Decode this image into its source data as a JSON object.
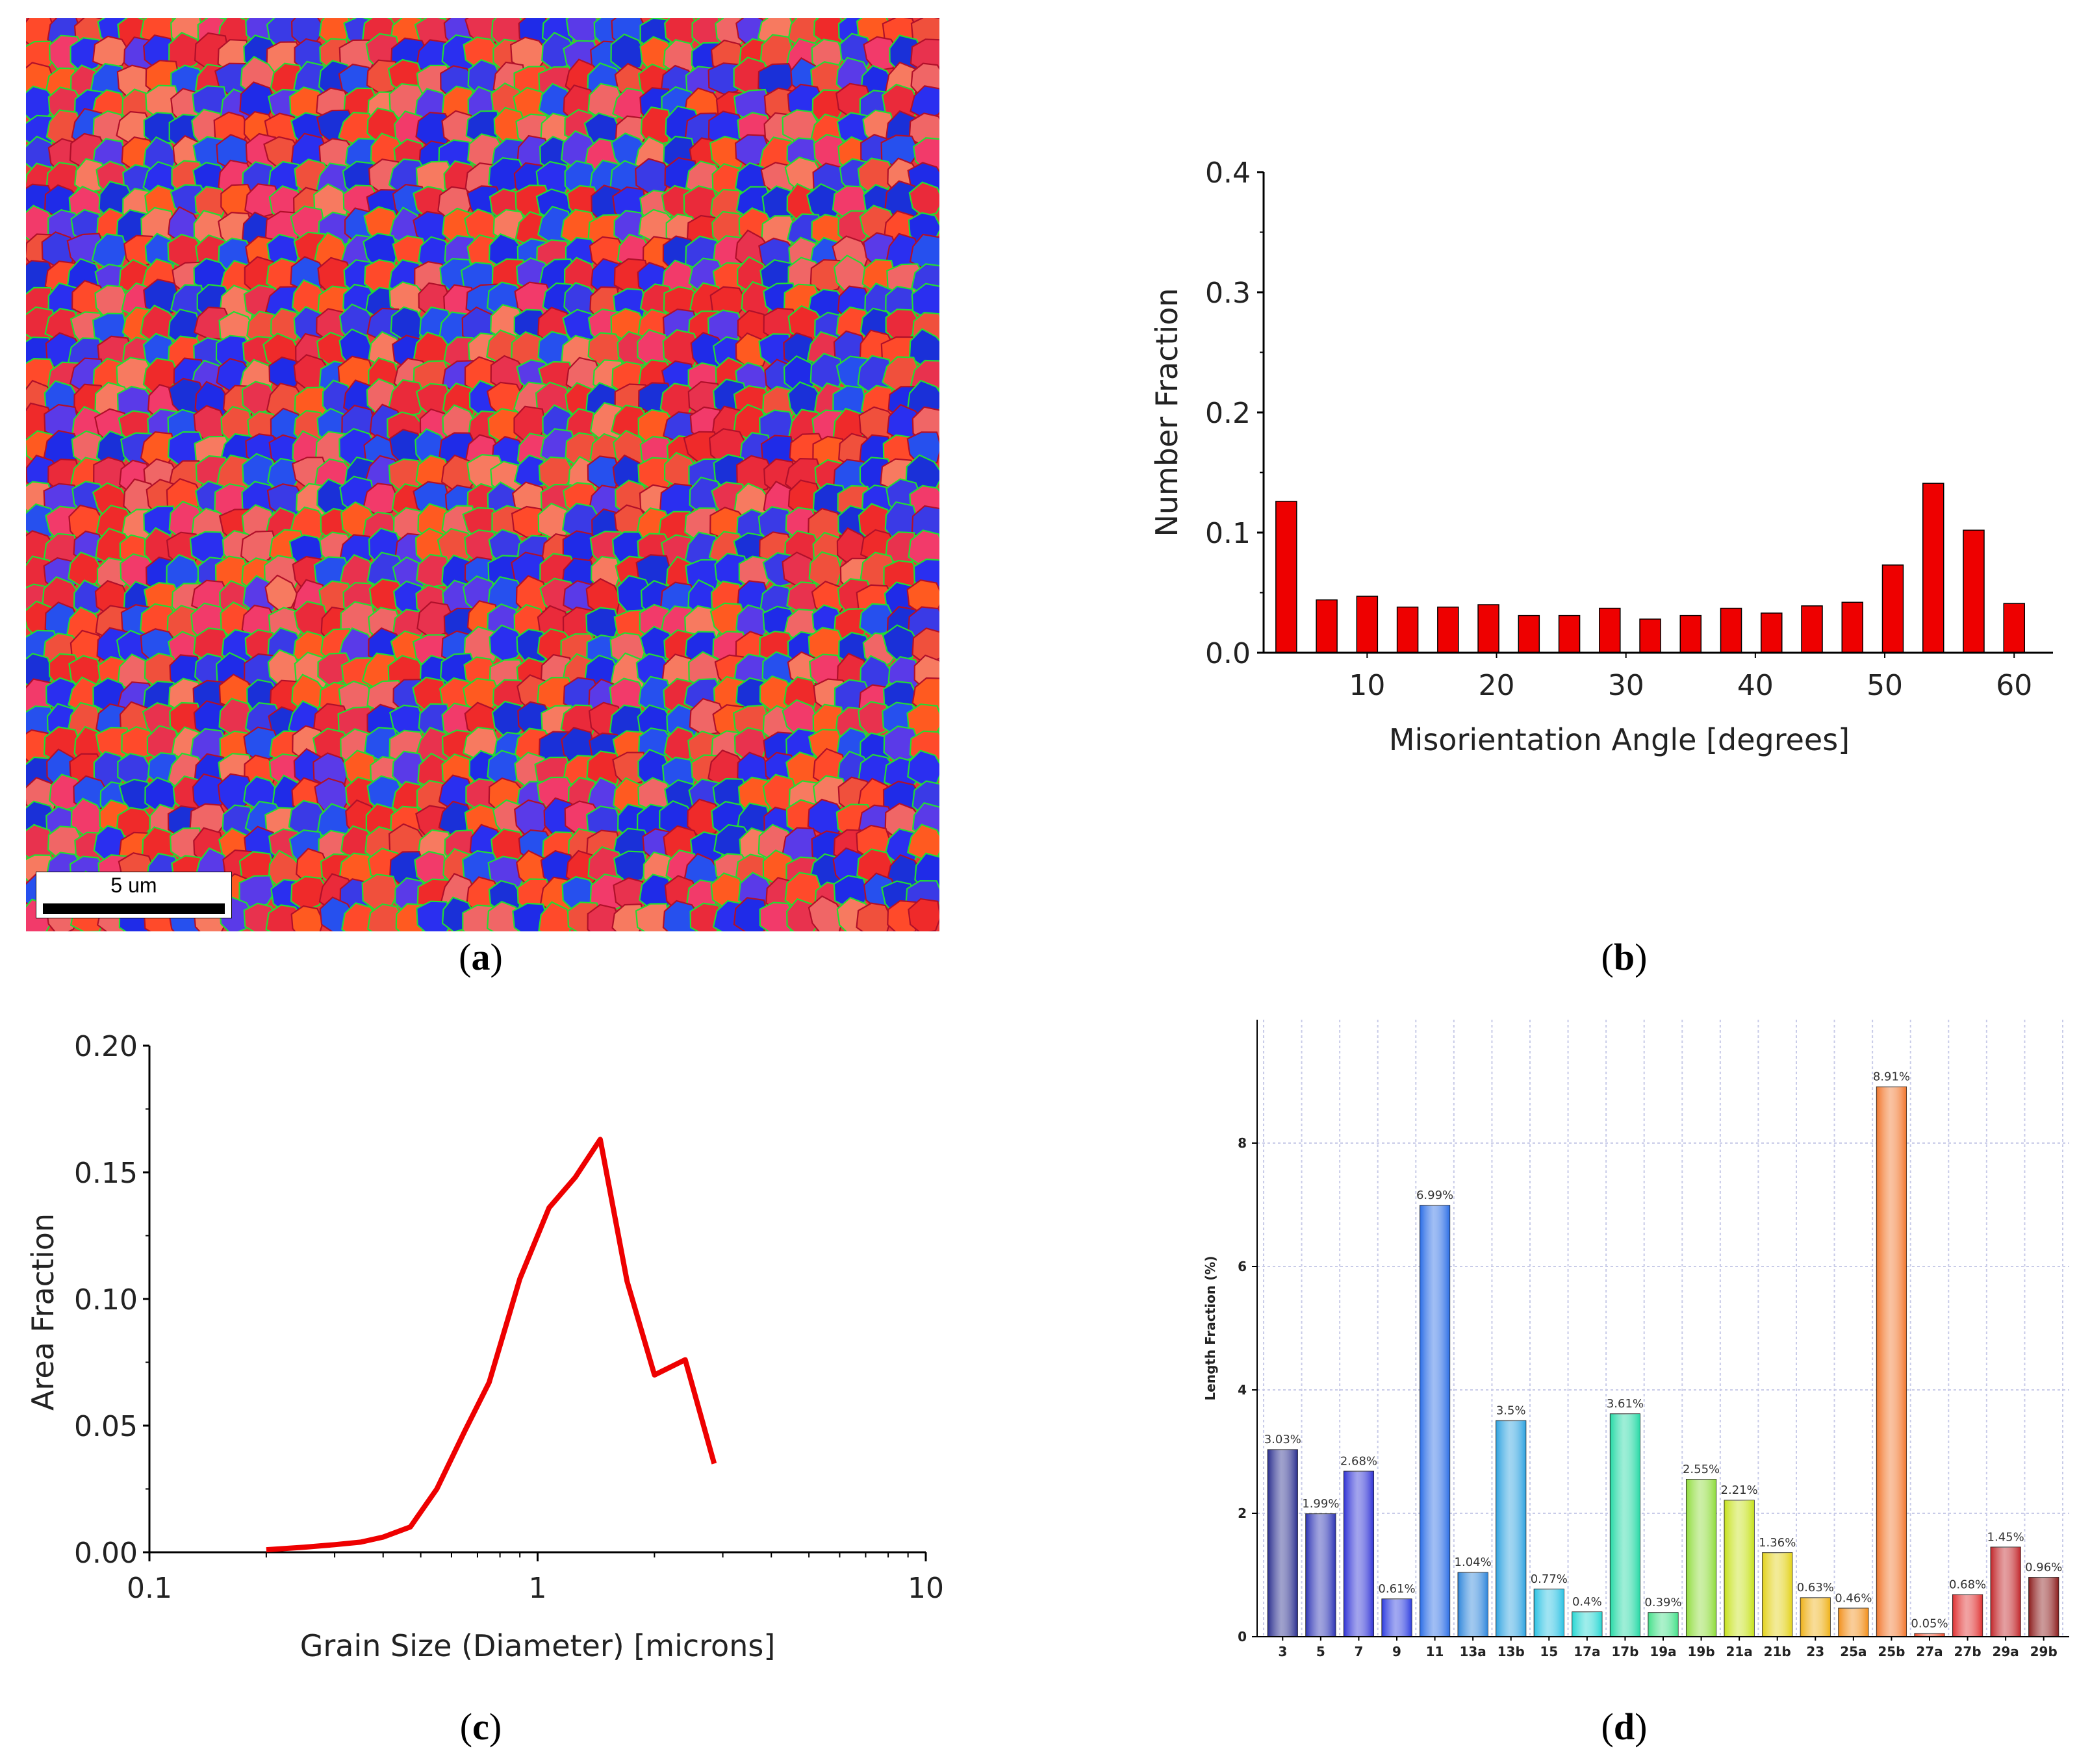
{
  "captions": {
    "a": "a",
    "b": "b",
    "c": "c",
    "d": "d"
  },
  "panel_a": {
    "scale_label": "5 um"
  },
  "chart_data": [
    {
      "id": "b",
      "type": "bar",
      "xlabel": "Misorientation Angle [degrees]",
      "ylabel": "Number Fraction",
      "x_ticks": [
        10,
        20,
        30,
        40,
        50,
        60
      ],
      "y_ticks": [
        "0.0",
        "0.1",
        "0.2",
        "0.3",
        "0.4"
      ],
      "xlim": [
        2,
        63
      ],
      "ylim": [
        0,
        0.4
      ],
      "bar_color": "#ee0000",
      "x": [
        3.75,
        6.875,
        10,
        13.125,
        16.25,
        19.375,
        22.5,
        25.625,
        28.75,
        31.875,
        35,
        38.125,
        41.25,
        44.375,
        47.5,
        50.625,
        53.75,
        56.875,
        60
      ],
      "values": [
        0.126,
        0.044,
        0.047,
        0.038,
        0.038,
        0.04,
        0.031,
        0.031,
        0.037,
        0.028,
        0.031,
        0.037,
        0.033,
        0.039,
        0.042,
        0.073,
        0.141,
        0.102,
        0.041
      ]
    },
    {
      "id": "c",
      "type": "line",
      "xlabel": "Grain Size (Diameter) [microns]",
      "ylabel": "Area Fraction",
      "x_scale": "log",
      "x_ticks": [
        "0.1",
        "1",
        "10"
      ],
      "y_ticks": [
        "0.00",
        "0.05",
        "0.10",
        "0.15",
        "0.20"
      ],
      "xlim": [
        0.1,
        10
      ],
      "ylim": [
        0,
        0.2
      ],
      "line_color": "#ee0000",
      "x": [
        0.2,
        0.25,
        0.3,
        0.35,
        0.4,
        0.47,
        0.55,
        0.65,
        0.75,
        0.9,
        1.07,
        1.25,
        1.45,
        1.7,
        2.0,
        2.4,
        2.85
      ],
      "y": [
        0.001,
        0.002,
        0.003,
        0.004,
        0.006,
        0.01,
        0.025,
        0.048,
        0.067,
        0.108,
        0.136,
        0.148,
        0.163,
        0.107,
        0.07,
        0.076,
        0.035
      ]
    },
    {
      "id": "d",
      "type": "bar",
      "xlabel": "",
      "ylabel": "Length Fraction (%)",
      "y_ticks": [
        "0",
        "2",
        "4",
        "6",
        "8"
      ],
      "ylim": [
        0,
        10
      ],
      "categories": [
        "3",
        "5",
        "7",
        "9",
        "11",
        "13a",
        "13b",
        "15",
        "17a",
        "17b",
        "19a",
        "19b",
        "21a",
        "21b",
        "23",
        "25a",
        "25b",
        "27a",
        "27b",
        "29a",
        "29b"
      ],
      "values": [
        3.03,
        1.99,
        2.68,
        0.61,
        6.99,
        1.04,
        3.5,
        0.77,
        0.4,
        3.61,
        0.39,
        2.55,
        2.21,
        1.36,
        0.63,
        0.46,
        8.91,
        0.05,
        0.68,
        1.45,
        0.96
      ],
      "data_labels": [
        "3.03%",
        "1.99%",
        "2.68%",
        "0.61%",
        "6.99%",
        "1.04%",
        "3.5%",
        "0.77%",
        "0.4%",
        "3.61%",
        "0.39%",
        "2.55%",
        "2.21%",
        "1.36%",
        "0.63%",
        "0.46%",
        "8.91%",
        "0.05%",
        "0.68%",
        "1.45%",
        "0.96%"
      ],
      "colors": [
        "#2b2f8f",
        "#2e35b5",
        "#3134d6",
        "#2f3fe0",
        "#2c6ee6",
        "#2f86db",
        "#2fa3e0",
        "#2cc2e3",
        "#29d7d3",
        "#27d9a6",
        "#45e08a",
        "#8fdc3c",
        "#c7e21d",
        "#e3d21a",
        "#efb21a",
        "#f2901c",
        "#f2772d",
        "#ec4d2d",
        "#e03232",
        "#c2282c",
        "#8c1d1d"
      ]
    }
  ]
}
